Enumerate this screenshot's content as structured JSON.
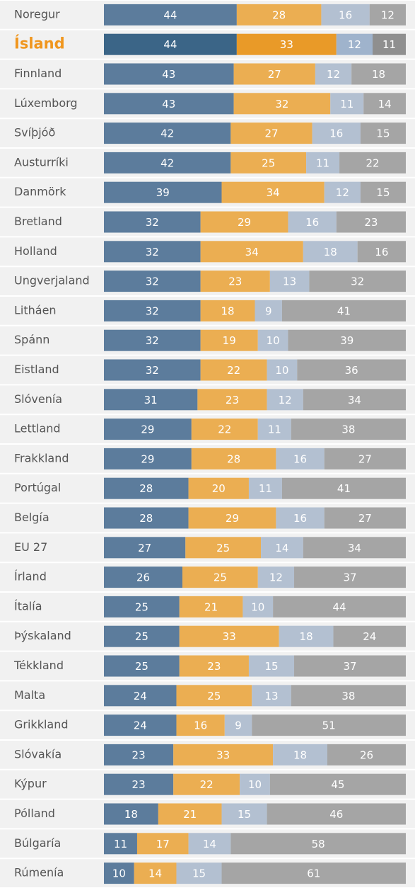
{
  "chart_data": {
    "type": "stacked-bar-horizontal",
    "categories": [
      "Noregur",
      "Ísland",
      "Finnland",
      "Lúxemborg",
      "Svíþjóð",
      "Austurríki",
      "Danmörk",
      "Bretland",
      "Holland",
      "Ungverjaland",
      "Litháen",
      "Spánn",
      "Eistland",
      "Slóvenía",
      "Lettland",
      "Frakkland",
      "Portúgal",
      "Belgía",
      "EU 27",
      "Írland",
      "Ítalía",
      "Þýskaland",
      "Tékkland",
      "Malta",
      "Grikkland",
      "Slóvakía",
      "Kýpur",
      "Pólland",
      "Búlgaría",
      "Rúmenía"
    ],
    "highlight_index": 1,
    "xlim": [
      0,
      100
    ],
    "series": [
      {
        "color": "#5c7c9c",
        "highlight_color": "#3b6587",
        "values": [
          44,
          44,
          43,
          43,
          42,
          42,
          39,
          32,
          32,
          32,
          32,
          32,
          32,
          31,
          29,
          29,
          28,
          28,
          27,
          26,
          25,
          25,
          25,
          24,
          24,
          23,
          23,
          18,
          11,
          10
        ]
      },
      {
        "color": "#ebae52",
        "highlight_color": "#e99a28",
        "values": [
          28,
          33,
          27,
          32,
          27,
          25,
          34,
          29,
          34,
          23,
          18,
          19,
          22,
          23,
          22,
          28,
          20,
          29,
          25,
          25,
          21,
          33,
          23,
          25,
          16,
          33,
          22,
          21,
          17,
          14
        ]
      },
      {
        "color": "#b3c0d1",
        "highlight_color": "#9fb3cc",
        "values": [
          16,
          12,
          12,
          11,
          16,
          11,
          12,
          16,
          18,
          13,
          9,
          10,
          10,
          12,
          11,
          16,
          11,
          16,
          14,
          12,
          10,
          18,
          15,
          13,
          9,
          18,
          10,
          15,
          14,
          15
        ]
      },
      {
        "color": "#a5a5a5",
        "highlight_color": "#8f8f8f",
        "values": [
          12,
          11,
          18,
          14,
          15,
          22,
          15,
          23,
          16,
          32,
          41,
          39,
          36,
          34,
          38,
          27,
          41,
          27,
          34,
          37,
          44,
          24,
          37,
          38,
          51,
          26,
          45,
          46,
          58,
          61
        ]
      }
    ]
  }
}
